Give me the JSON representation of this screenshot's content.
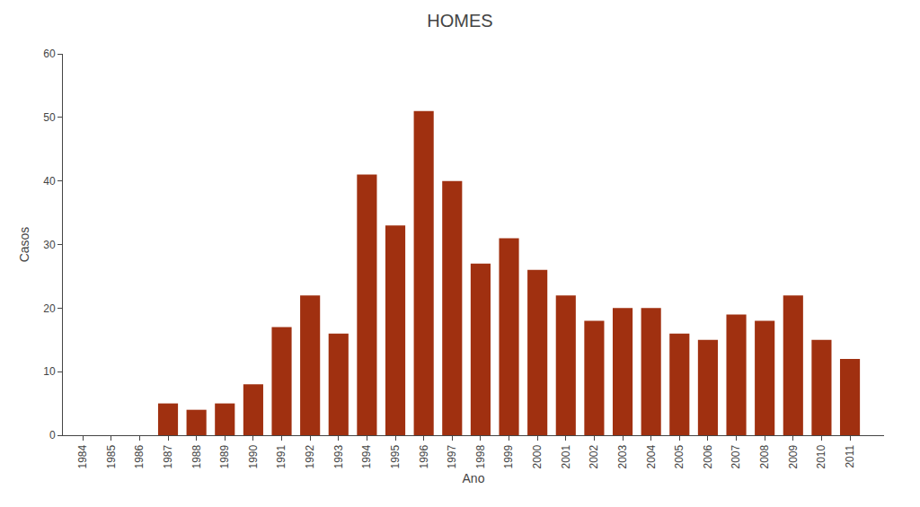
{
  "chart_data": {
    "type": "bar",
    "title": "HOMES",
    "xlabel": "Ano",
    "ylabel": "Casos",
    "x": [
      1984,
      1985,
      1986,
      1987,
      1988,
      1989,
      1990,
      1991,
      1992,
      1993,
      1994,
      1995,
      1996,
      1997,
      1998,
      1999,
      2000,
      2001,
      2002,
      2003,
      2004,
      2005,
      2006,
      2007,
      2008,
      2009,
      2010,
      2011
    ],
    "values": [
      0,
      0,
      0,
      5,
      4,
      5,
      8,
      17,
      22,
      16,
      41,
      33,
      51,
      40,
      27,
      31,
      26,
      22,
      18,
      20,
      20,
      16,
      15,
      19,
      18,
      22,
      15,
      12
    ],
    "color": "#a03010",
    "xlim": [
      1983.3,
      2012.2
    ],
    "xticks": [
      1984,
      1985,
      1986,
      1987,
      1988,
      1989,
      1990,
      1991,
      1992,
      1993,
      1994,
      1995,
      1996,
      1997,
      1998,
      1999,
      2000,
      2001,
      2002,
      2003,
      2004,
      2005,
      2006,
      2007,
      2008,
      2009,
      2010,
      2011
    ],
    "ylim": [
      0,
      60
    ],
    "yticks": [
      0,
      10,
      20,
      30,
      40,
      50,
      60
    ],
    "grid": false
  }
}
